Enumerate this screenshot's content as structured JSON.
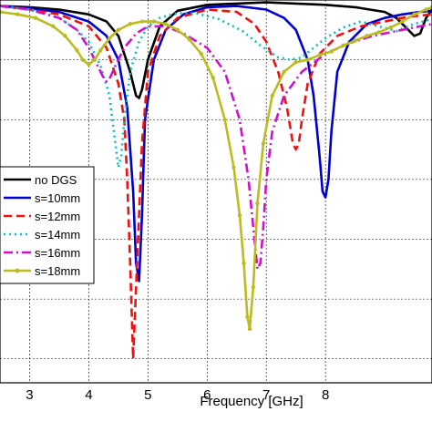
{
  "chart_data": {
    "type": "line",
    "xlabel": "Frequency [GHz]",
    "ylabel": "",
    "title": "",
    "xlim": [
      2.5,
      9.8
    ],
    "ylim": [
      -32,
      0
    ],
    "xticks": [
      3,
      4,
      5,
      6,
      7,
      8
    ],
    "yticks": [
      0,
      -5,
      -10,
      -15,
      -20,
      -25,
      -30
    ],
    "grid": true,
    "legend_position": "left-middle",
    "series": [
      {
        "name": "no DGS",
        "color": "#000000",
        "style": "solid",
        "x": [
          2.5,
          3.0,
          3.5,
          4.0,
          4.3,
          4.5,
          4.7,
          4.8,
          4.85,
          4.9,
          5.0,
          5.2,
          5.5,
          6.0,
          6.5,
          7.0,
          7.5,
          8.0,
          8.5,
          9.0,
          9.2,
          9.4,
          9.5,
          9.6,
          9.7,
          9.8
        ],
        "y": [
          -0.5,
          -0.6,
          -0.8,
          -1.2,
          -1.8,
          -3.0,
          -6.0,
          -8.0,
          -8.2,
          -7.5,
          -5.0,
          -2.2,
          -0.9,
          -0.4,
          -0.3,
          -0.2,
          -0.3,
          -0.4,
          -0.6,
          -1.0,
          -1.5,
          -2.5,
          -3.0,
          -2.8,
          -1.5,
          -0.8
        ]
      },
      {
        "name": "s=10mm",
        "color": "#0000cc",
        "style": "solid",
        "x": [
          2.5,
          3.0,
          3.5,
          4.0,
          4.3,
          4.5,
          4.65,
          4.75,
          4.8,
          4.85,
          4.9,
          4.95,
          5.1,
          5.3,
          5.6,
          6.0,
          6.5,
          7.0,
          7.3,
          7.5,
          7.7,
          7.8,
          7.9,
          7.95,
          8.0,
          8.05,
          8.1,
          8.2,
          8.4,
          8.7,
          9.0,
          9.3,
          9.6,
          9.8
        ],
        "y": [
          -0.5,
          -0.7,
          -1.0,
          -1.8,
          -3.0,
          -5.0,
          -9.0,
          -16.0,
          -22.0,
          -23.5,
          -18.0,
          -10.0,
          -5.0,
          -2.5,
          -1.2,
          -0.6,
          -0.5,
          -0.8,
          -1.5,
          -2.5,
          -5.0,
          -8.0,
          -13.0,
          -16.0,
          -16.5,
          -15.0,
          -11.0,
          -6.0,
          -3.5,
          -2.0,
          -1.5,
          -1.2,
          -1.0,
          -0.9
        ]
      },
      {
        "name": "s=12mm",
        "color": "#ee1111",
        "style": "dashed",
        "x": [
          2.5,
          3.0,
          3.5,
          4.0,
          4.3,
          4.5,
          4.6,
          4.65,
          4.7,
          4.75,
          4.8,
          4.9,
          5.0,
          5.2,
          5.5,
          6.0,
          6.5,
          6.8,
          7.0,
          7.2,
          7.35,
          7.45,
          7.5,
          7.55,
          7.6,
          7.7,
          7.9,
          8.2,
          8.6,
          9.0,
          9.4,
          9.8
        ],
        "y": [
          -0.5,
          -0.8,
          -1.2,
          -2.2,
          -4.0,
          -7.0,
          -10.0,
          -15.0,
          -22.0,
          -30.0,
          -24.0,
          -12.0,
          -6.0,
          -3.0,
          -1.5,
          -0.8,
          -1.0,
          -2.0,
          -3.5,
          -6.0,
          -9.0,
          -12.0,
          -12.5,
          -12.0,
          -10.0,
          -7.0,
          -4.5,
          -3.0,
          -2.2,
          -1.8,
          -1.4,
          -1.2
        ]
      },
      {
        "name": "s=14mm",
        "color": "#11bbbb",
        "style": "dotted",
        "x": [
          2.5,
          3.0,
          3.5,
          3.8,
          4.0,
          4.2,
          4.35,
          4.45,
          4.5,
          4.55,
          4.6,
          4.7,
          4.85,
          5.0,
          5.2,
          5.5,
          5.8,
          6.2,
          6.6,
          6.9,
          7.2,
          7.4,
          7.6,
          7.8,
          8.0,
          8.3,
          8.6,
          8.9,
          9.2,
          9.5,
          9.8
        ],
        "y": [
          -0.5,
          -0.8,
          -1.5,
          -2.5,
          -3.5,
          -5.5,
          -8.0,
          -12.0,
          -14.0,
          -13.0,
          -10.0,
          -6.0,
          -3.5,
          -2.2,
          -1.5,
          -1.1,
          -1.1,
          -1.6,
          -2.6,
          -3.8,
          -4.8,
          -5.0,
          -4.8,
          -4.0,
          -3.2,
          -2.3,
          -1.8,
          -2.2,
          -2.6,
          -2.0,
          -1.6
        ]
      },
      {
        "name": "s=16mm",
        "color": "#cc11cc",
        "style": "dashdot",
        "x": [
          2.5,
          3.0,
          3.5,
          3.8,
          4.0,
          4.15,
          4.25,
          4.3,
          4.35,
          4.45,
          4.6,
          4.8,
          5.0,
          5.3,
          5.6,
          6.0,
          6.3,
          6.55,
          6.7,
          6.8,
          6.85,
          6.9,
          6.95,
          7.0,
          7.1,
          7.3,
          7.6,
          8.0,
          8.4,
          8.8,
          9.2,
          9.6,
          9.8
        ],
        "y": [
          -0.5,
          -0.8,
          -1.5,
          -2.5,
          -4.0,
          -5.5,
          -6.5,
          -6.8,
          -6.6,
          -5.5,
          -4.0,
          -2.8,
          -2.2,
          -2.2,
          -2.8,
          -4.0,
          -6.0,
          -10.0,
          -15.0,
          -20.0,
          -22.5,
          -22.0,
          -19.0,
          -15.0,
          -11.0,
          -8.0,
          -6.0,
          -4.5,
          -3.6,
          -3.0,
          -2.6,
          -2.2,
          -2.0
        ]
      },
      {
        "name": "s=18mm",
        "color": "#bbbb22",
        "style": "solid-markers",
        "x": [
          2.5,
          2.8,
          3.1,
          3.4,
          3.6,
          3.8,
          3.9,
          4.0,
          4.1,
          4.2,
          4.35,
          4.5,
          4.7,
          4.9,
          5.1,
          5.3,
          5.5,
          5.7,
          5.9,
          6.1,
          6.3,
          6.45,
          6.55,
          6.62,
          6.68,
          6.72,
          6.78,
          6.85,
          6.95,
          7.1,
          7.3,
          7.5,
          7.7,
          7.9,
          8.1,
          8.3,
          8.5,
          8.7,
          8.9,
          9.1,
          9.3,
          9.5,
          9.7,
          9.8
        ],
        "y": [
          -1.0,
          -1.2,
          -1.5,
          -2.2,
          -3.0,
          -4.2,
          -5.0,
          -5.4,
          -5.0,
          -4.2,
          -3.2,
          -2.5,
          -2.0,
          -1.8,
          -1.8,
          -2.0,
          -2.5,
          -3.3,
          -4.5,
          -6.5,
          -10.0,
          -14.0,
          -18.0,
          -22.0,
          -26.5,
          -27.5,
          -24.0,
          -17.0,
          -12.0,
          -8.0,
          -6.0,
          -5.2,
          -5.0,
          -4.6,
          -4.3,
          -3.8,
          -3.4,
          -3.0,
          -2.7,
          -2.3,
          -1.8,
          -1.2,
          -0.8,
          -0.6
        ]
      }
    ]
  }
}
